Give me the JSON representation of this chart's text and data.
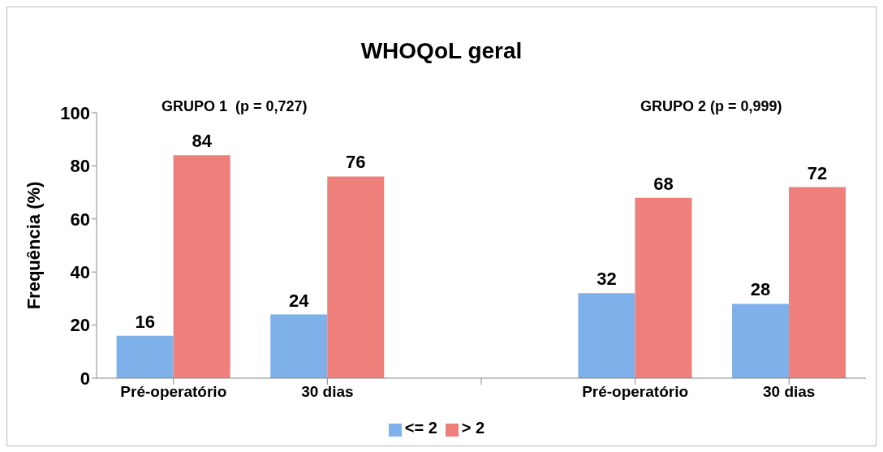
{
  "chart_data": {
    "type": "bar",
    "title": "WHOQoL geral",
    "ylabel": "Frequência (%)",
    "categories": [
      "Pré-operatório",
      "30 dias",
      null,
      "Pré-operatório",
      "30 dias"
    ],
    "series": [
      {
        "name": "<= 2",
        "color": "#7eb0ea",
        "values": [
          16,
          24,
          null,
          32,
          28
        ]
      },
      {
        "name": "> 2",
        "color": "#ee7f7b",
        "values": [
          84,
          76,
          null,
          68,
          72
        ]
      }
    ],
    "ylim": [
      0,
      100
    ],
    "yticks": [
      0,
      20,
      40,
      60,
      80,
      100
    ],
    "grid": false,
    "legend": "bottom",
    "data_labels": true,
    "annotations": [
      "GRUPO 1  (p = 0,727)",
      "GRUPO 2 (p = 0,999)"
    ]
  }
}
